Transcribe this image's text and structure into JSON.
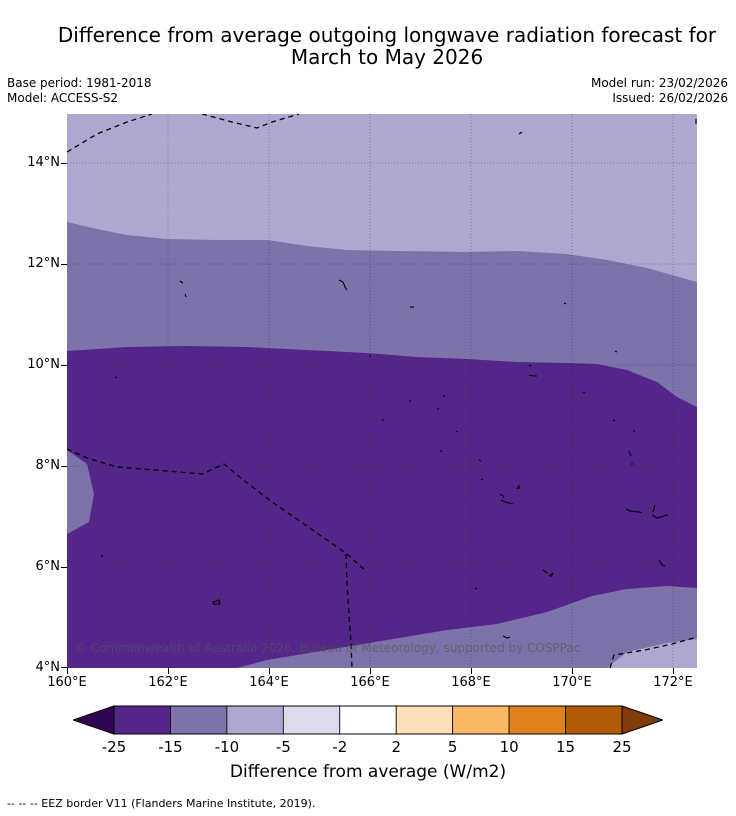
{
  "title_line1": "Difference from average outgoing longwave radiation forecast for",
  "title_line2": "March to May 2026",
  "base_period": "Base period: 1981-2018",
  "model": "Model: ACCESS-S2",
  "model_run": "Model run: 23/02/2026",
  "issued": "Issued: 26/02/2026",
  "copyright": "© Commonwealth of Australia 2026, Bureau of Meteorology, supported by COSPPac",
  "map": {
    "lat_range": [
      4,
      15
    ],
    "lon_range": [
      160,
      172.5
    ],
    "lat_ticks": [
      "14°N",
      "12°N",
      "10°N",
      "8°N",
      "6°N",
      "4°N"
    ],
    "lon_ticks": [
      "160°E",
      "162°E",
      "164°E",
      "166°E",
      "168°E",
      "170°E",
      "172°E"
    ]
  },
  "colorbar": {
    "title": "Difference from average (W/m2)",
    "labels": [
      "-25",
      "-15",
      "-10",
      "-5",
      "-2",
      "2",
      "5",
      "10",
      "15",
      "25"
    ],
    "colors": [
      "#54268a",
      "#7e72ab",
      "#b0a7d0",
      "#dcdaed",
      "#ffffff",
      "#fde0b6",
      "#f9b862",
      "#e0821d",
      "#b35a08"
    ],
    "under_color": "#300551",
    "over_color": "#7f3b08"
  },
  "legend_text": "--  --  -- EEZ border V11 (Flanders Marine Institute, 2019)."
}
